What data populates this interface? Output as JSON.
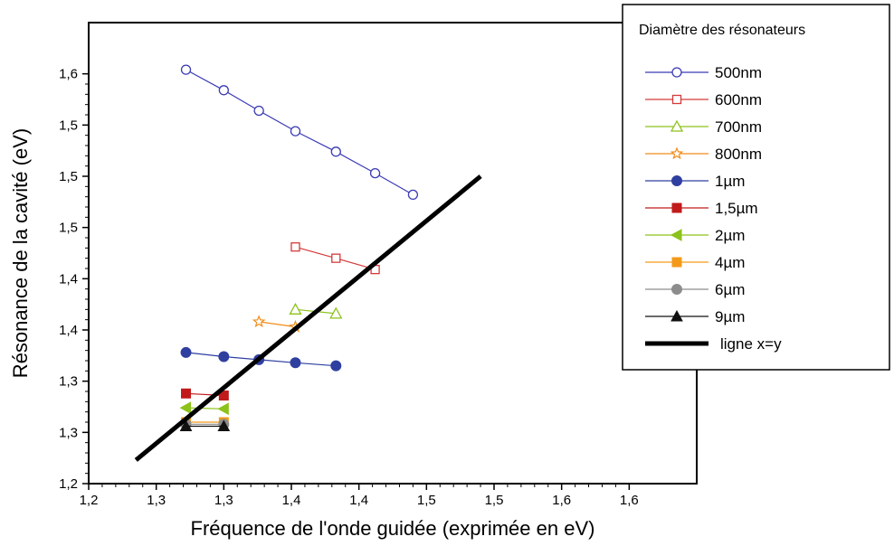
{
  "chart_data": {
    "type": "line",
    "xlabel": "Fréquence de l'onde guidée (exprimée en eV)",
    "ylabel": "Résonance de la cavité (eV)",
    "xlim": [
      1.2,
      1.65
    ],
    "ylim": [
      1.2,
      1.65
    ],
    "x_ticks": [
      1.2,
      1.25,
      1.3,
      1.35,
      1.4,
      1.45,
      1.5,
      1.55,
      1.6
    ],
    "x_tick_labels": [
      "1,2",
      "1,3",
      "1,3",
      "1,4",
      "1,4",
      "1,5",
      "1,5",
      "1,6",
      "1,6"
    ],
    "y_ticks": [
      1.2,
      1.25,
      1.3,
      1.35,
      1.4,
      1.45,
      1.5,
      1.55,
      1.6
    ],
    "y_tick_labels": [
      "1,2",
      "1,3",
      "1,3",
      "1,4",
      "1,4",
      "1,5",
      "1,5",
      "1,5",
      "1,6"
    ],
    "grid": false,
    "legend": {
      "title": "Diamètre des résonateurs",
      "placement": "top-right, outside plot"
    },
    "series": [
      {
        "name": "500nm",
        "color": "#3b3bb5",
        "marker": "circle-open",
        "x": [
          1.272,
          1.3,
          1.326,
          1.353,
          1.383,
          1.412,
          1.44
        ],
        "y": [
          1.604,
          1.584,
          1.564,
          1.544,
          1.524,
          1.503,
          1.482
        ]
      },
      {
        "name": "600nm",
        "color": "#d43a3a",
        "marker": "square-open",
        "x": [
          1.353,
          1.383,
          1.412
        ],
        "y": [
          1.431,
          1.42,
          1.409
        ]
      },
      {
        "name": "700nm",
        "color": "#8cc21a",
        "marker": "triangle-open",
        "x": [
          1.353,
          1.383
        ],
        "y": [
          1.37,
          1.366
        ]
      },
      {
        "name": "800nm",
        "color": "#f28c1a",
        "marker": "star-open",
        "x": [
          1.326,
          1.353
        ],
        "y": [
          1.358,
          1.353
        ]
      },
      {
        "name": "1µm",
        "color": "#2f3fa0",
        "marker": "circle-filled",
        "x": [
          1.272,
          1.3,
          1.326,
          1.353,
          1.383
        ],
        "y": [
          1.328,
          1.324,
          1.321,
          1.318,
          1.315
        ]
      },
      {
        "name": "1,5µm",
        "color": "#c01a1a",
        "marker": "square-filled",
        "x": [
          1.272,
          1.3
        ],
        "y": [
          1.288,
          1.286
        ]
      },
      {
        "name": "2µm",
        "color": "#8cc21a",
        "marker": "triangle-left-filled",
        "x": [
          1.272,
          1.3
        ],
        "y": [
          1.274,
          1.273
        ]
      },
      {
        "name": "4µm",
        "color": "#f39a1a",
        "marker": "square-filled",
        "x": [
          1.272,
          1.3
        ],
        "y": [
          1.26,
          1.26
        ]
      },
      {
        "name": "6µm",
        "color": "#8c8c8c",
        "marker": "circle-filled",
        "x": [
          1.272,
          1.3
        ],
        "y": [
          1.258,
          1.258
        ]
      },
      {
        "name": "9µm",
        "color": "#111111",
        "marker": "triangle-up-filled",
        "x": [
          1.272,
          1.3
        ],
        "y": [
          1.256,
          1.256
        ]
      },
      {
        "name": "ligne x=y",
        "color": "#000000",
        "marker": "none",
        "thick": true,
        "x": [
          1.235,
          1.49
        ],
        "y": [
          1.223,
          1.5
        ]
      }
    ]
  }
}
